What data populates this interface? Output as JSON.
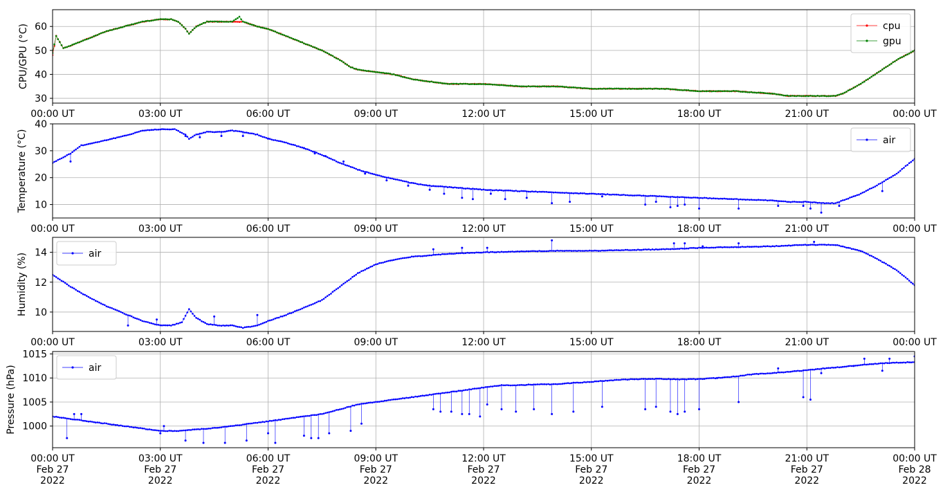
{
  "chart_data": [
    {
      "type": "line",
      "ylabel": "CPU/GPU (°C)",
      "xlim_hours": [
        0,
        24
      ],
      "ylim": [
        28,
        67
      ],
      "yticks": [
        30,
        40,
        50,
        60
      ],
      "grid": true,
      "legend_position": "top-right",
      "x_tick_labels": [
        "00:00 UT",
        "03:00 UT",
        "06:00 UT",
        "09:00 UT",
        "12:00 UT",
        "15:00 UT",
        "18:00 UT",
        "21:00 UT",
        "00:00 UT"
      ],
      "series": [
        {
          "name": "cpu",
          "color": "#ff0000",
          "x_hours": [
            0,
            0.1,
            0.3,
            0.5,
            1,
            1.5,
            2,
            2.5,
            3,
            3.3,
            3.5,
            3.7,
            3.8,
            4,
            4.3,
            4.6,
            5,
            5.3,
            5.7,
            6,
            6.5,
            7,
            7.5,
            8,
            8.3,
            8.5,
            9,
            9.5,
            10,
            10.5,
            11,
            12,
            13,
            14,
            15,
            16,
            17,
            18,
            19,
            20,
            20.5,
            21,
            21.5,
            21.8,
            22,
            22.5,
            23,
            23.5,
            24
          ],
          "values": [
            48,
            56,
            51,
            52,
            55,
            58,
            60,
            62,
            63,
            63,
            62,
            59,
            57,
            60,
            62,
            62,
            62,
            62,
            60,
            59,
            56,
            53,
            50,
            46,
            43,
            42,
            41,
            40,
            38,
            37,
            36,
            36,
            35,
            35,
            34,
            34,
            34,
            33,
            33,
            32,
            31,
            31,
            31,
            31,
            32,
            36,
            41,
            46,
            50
          ]
        },
        {
          "name": "gpu",
          "color": "#008000",
          "x_hours": [
            0,
            0.1,
            0.3,
            0.5,
            1,
            1.5,
            2,
            2.5,
            3,
            3.3,
            3.5,
            3.7,
            3.8,
            4,
            4.3,
            4.6,
            5,
            5.2,
            5.3,
            5.7,
            6,
            6.5,
            7,
            7.5,
            8,
            8.3,
            8.5,
            9,
            9.5,
            10,
            10.5,
            11,
            12,
            13,
            14,
            15,
            16,
            17,
            18,
            19,
            20,
            20.5,
            21,
            21.5,
            21.8,
            22,
            22.5,
            23,
            23.5,
            24
          ],
          "values": [
            49,
            56,
            51,
            52,
            55,
            58,
            60,
            62,
            63,
            63,
            62,
            59,
            57,
            60,
            62,
            62,
            62,
            64,
            62,
            60,
            59,
            56,
            53,
            50,
            46,
            43,
            42,
            41,
            40,
            38,
            37,
            36,
            36,
            35,
            35,
            34,
            34,
            34,
            33,
            33,
            32,
            31,
            31,
            31,
            31,
            32,
            36,
            41,
            46,
            50
          ]
        }
      ]
    },
    {
      "type": "line",
      "ylabel": "Temperature (°C)",
      "xlim_hours": [
        0,
        24
      ],
      "ylim": [
        5,
        40
      ],
      "yticks": [
        10,
        20,
        30,
        40
      ],
      "grid": true,
      "legend_position": "top-right",
      "x_tick_labels": [
        "00:00 UT",
        "03:00 UT",
        "06:00 UT",
        "09:00 UT",
        "12:00 UT",
        "15:00 UT",
        "18:00 UT",
        "21:00 UT",
        "00:00 UT"
      ],
      "series": [
        {
          "name": "air",
          "color": "#0000ff",
          "x_hours": [
            0,
            0.5,
            0.8,
            1,
            1.5,
            2,
            2.5,
            3,
            3.4,
            3.7,
            3.8,
            4,
            4.3,
            4.7,
            5,
            5.3,
            5.7,
            6,
            6.5,
            7,
            7.5,
            8,
            8.5,
            9,
            9.5,
            10,
            10.5,
            11,
            12,
            13,
            14,
            15,
            16,
            17,
            18,
            19,
            20,
            20.5,
            21,
            21.5,
            21.8,
            22,
            22.5,
            23,
            23.5,
            24
          ],
          "values": [
            25.5,
            29,
            32,
            32.5,
            34,
            35.5,
            37.5,
            38,
            38,
            36,
            34.5,
            36,
            37,
            37,
            37.5,
            37,
            36,
            34.5,
            33,
            31,
            28.5,
            25.5,
            23,
            21,
            19.5,
            18,
            17,
            16.5,
            15.5,
            15,
            14.5,
            14,
            13.5,
            13,
            12.5,
            12,
            11.5,
            11,
            11,
            10.5,
            10.5,
            11.5,
            14,
            17.5,
            21.5,
            27
          ],
          "outliers_x": [
            0.5,
            3.7,
            4.1,
            4.7,
            5.3,
            6.0,
            7.0,
            7.3,
            7.6,
            8.1,
            8.7,
            9.3,
            9.9,
            10.5,
            10.9,
            11.4,
            11.7,
            12.2,
            12.6,
            13.2,
            13.9,
            14.4,
            15.3,
            16.5,
            16.8,
            17.2,
            17.4,
            17.6,
            18.0,
            19.1,
            20.2,
            20.9,
            21.1,
            21.4,
            21.9,
            23.1
          ],
          "outliers_y": [
            26,
            35.5,
            35,
            35.5,
            35.5,
            34.5,
            31,
            29,
            28,
            26,
            21.5,
            19,
            17,
            15.5,
            14,
            12.5,
            12,
            14,
            12,
            12.5,
            10.5,
            11,
            13,
            10,
            11,
            9,
            9.5,
            10,
            8.5,
            8.5,
            9.5,
            9.5,
            8.5,
            7,
            9.5,
            15
          ]
        }
      ]
    },
    {
      "type": "line",
      "ylabel": "Humidity (%)",
      "xlim_hours": [
        0,
        24
      ],
      "ylim": [
        8.7,
        15
      ],
      "yticks": [
        10,
        12,
        14
      ],
      "grid": true,
      "legend_position": "top-left",
      "x_tick_labels": [
        "00:00 UT",
        "03:00 UT",
        "06:00 UT",
        "09:00 UT",
        "12:00 UT",
        "15:00 UT",
        "18:00 UT",
        "21:00 UT",
        "00:00 UT"
      ],
      "series": [
        {
          "name": "air",
          "color": "#0000ff",
          "x_hours": [
            0,
            0.5,
            1,
            1.5,
            2,
            2.5,
            3,
            3.3,
            3.6,
            3.8,
            4,
            4.3,
            4.6,
            5,
            5.3,
            5.7,
            6,
            6.5,
            7,
            7.5,
            8,
            8.5,
            9,
            9.5,
            10,
            10.5,
            11,
            12,
            13,
            14,
            15,
            16,
            17,
            18,
            19,
            20,
            21,
            21.5,
            21.8,
            22.5,
            23,
            23.5,
            24
          ],
          "values": [
            12.5,
            11.7,
            11,
            10.4,
            9.9,
            9.4,
            9.1,
            9.1,
            9.3,
            10.2,
            9.6,
            9.2,
            9.1,
            9.1,
            8.95,
            9.1,
            9.4,
            9.8,
            10.3,
            10.8,
            11.7,
            12.6,
            13.2,
            13.5,
            13.7,
            13.8,
            13.9,
            14,
            14.05,
            14.1,
            14.1,
            14.15,
            14.2,
            14.3,
            14.35,
            14.4,
            14.5,
            14.5,
            14.5,
            14.1,
            13.5,
            12.8,
            11.8
          ],
          "outliers_x": [
            2.1,
            2.9,
            4.5,
            5.7,
            10.6,
            11.4,
            12.1,
            13.9,
            17.3,
            17.6,
            18.1,
            19.1,
            21.2
          ],
          "outliers_y": [
            9.1,
            9.5,
            9.7,
            9.8,
            14.2,
            14.3,
            14.3,
            14.8,
            14.6,
            14.6,
            14.4,
            14.6,
            14.7
          ]
        }
      ]
    },
    {
      "type": "line",
      "ylabel": "Pressure (hPa)",
      "xlim_hours": [
        0,
        24
      ],
      "ylim": [
        995.5,
        1015.5
      ],
      "yticks": [
        1000,
        1005,
        1010,
        1015
      ],
      "grid": true,
      "legend_position": "top-left",
      "x_tick_labels": [
        "00:00 UT\nFeb 27\n2022",
        "03:00 UT\nFeb 27\n2022",
        "06:00 UT\nFeb 27\n2022",
        "09:00 UT\nFeb 27\n2022",
        "12:00 UT\nFeb 27\n2022",
        "15:00 UT\nFeb 27\n2022",
        "18:00 UT\nFeb 27\n2022",
        "21:00 UT\nFeb 27\n2022",
        "00:00 UT\nFeb 28\n2022"
      ],
      "series": [
        {
          "name": "air",
          "color": "#0000ff",
          "x_hours": [
            0,
            0.5,
            1,
            1.5,
            2,
            2.5,
            3,
            3.5,
            4,
            4.5,
            5,
            5.5,
            6,
            6.5,
            7,
            7.5,
            8,
            8.5,
            9,
            9.5,
            10,
            10.5,
            11,
            11.5,
            12,
            12.5,
            13,
            13.5,
            14,
            14.5,
            15,
            15.5,
            16,
            16.5,
            17,
            17.5,
            18,
            18.5,
            19,
            19.5,
            20,
            20.5,
            21,
            21.5,
            22,
            22.5,
            23,
            23.5,
            24
          ],
          "values": [
            1002,
            1001.5,
            1001,
            1000.5,
            1000,
            999.5,
            999,
            999,
            999.3,
            999.6,
            1000,
            1000.5,
            1001,
            1001.5,
            1002,
            1002.5,
            1003.5,
            1004.5,
            1005,
            1005.5,
            1006,
            1006.5,
            1007,
            1007.5,
            1008,
            1008.5,
            1008.5,
            1008.7,
            1008.7,
            1009,
            1009.2,
            1009.5,
            1009.7,
            1009.8,
            1009.8,
            1009.7,
            1009.8,
            1010,
            1010.3,
            1010.8,
            1011,
            1011.3,
            1011.6,
            1012,
            1012.3,
            1012.7,
            1013,
            1013.2,
            1013.3
          ],
          "outliers_x": [
            0.4,
            0.6,
            0.8,
            3.0,
            3.1,
            3.7,
            4.2,
            4.8,
            5.4,
            6.0,
            6.2,
            7.0,
            7.2,
            7.4,
            7.7,
            8.3,
            8.6,
            10.6,
            10.8,
            11.1,
            11.4,
            11.6,
            11.9,
            12.1,
            12.5,
            12.9,
            13.4,
            13.9,
            14.5,
            15.3,
            16.5,
            16.8,
            17.2,
            17.4,
            17.6,
            18.0,
            18.5,
            19.1,
            20.2,
            20.9,
            21.1,
            21.4,
            22.3,
            22.6,
            23.1,
            23.3,
            24.0
          ],
          "outliers_y": [
            997.5,
            1002.5,
            1002.5,
            998.5,
            1000,
            997,
            996.5,
            996.5,
            997,
            998.5,
            996.5,
            998,
            997.5,
            997.5,
            998.5,
            999,
            1000.5,
            1003.5,
            1003,
            1003,
            1002.5,
            1002.5,
            1002,
            1004.5,
            1003.5,
            1003,
            1003.5,
            1002.5,
            1003,
            1004,
            1003.5,
            1004,
            1003,
            1002.5,
            1003,
            1003.5,
            1010,
            1005,
            1012,
            1006,
            1005.5,
            1011,
            1012.5,
            1014,
            1011.5,
            1014,
            1014.5
          ]
        }
      ]
    }
  ]
}
